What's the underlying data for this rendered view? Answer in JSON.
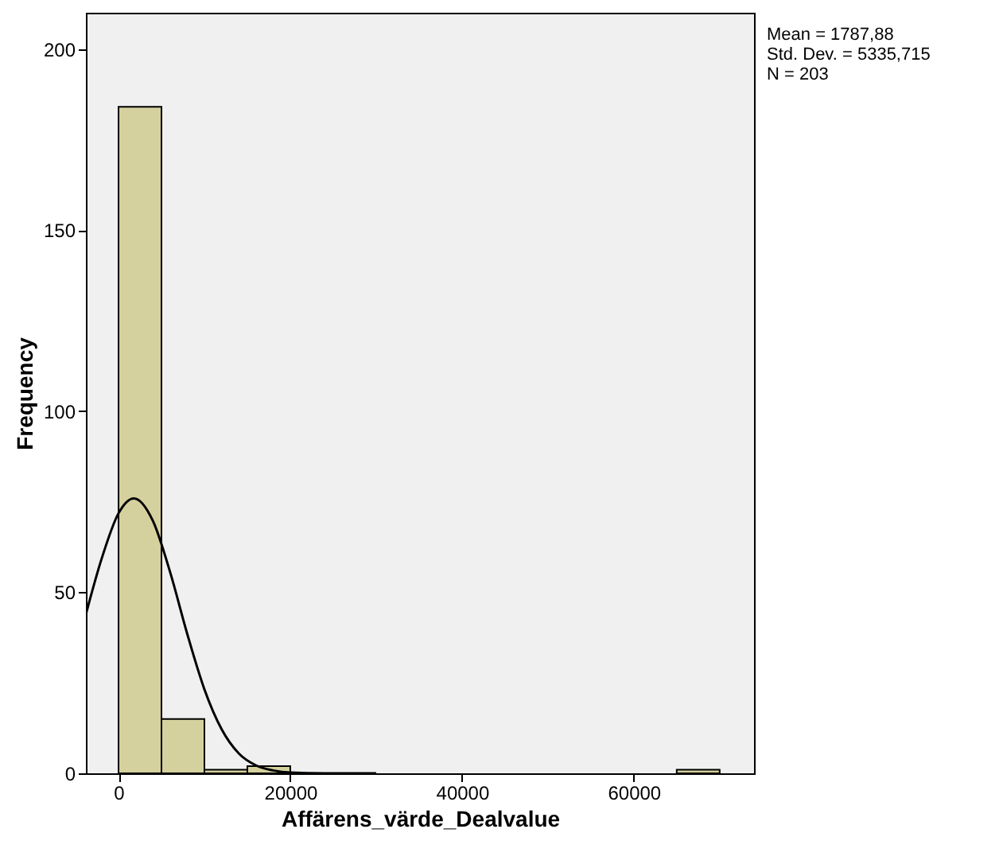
{
  "chart_data": {
    "type": "histogram",
    "xlabel": "Affärens_värde_Dealvalue",
    "ylabel": "Frequency",
    "xlim": [
      -3800,
      74000
    ],
    "xticks": [
      0,
      20000,
      40000,
      60000
    ],
    "ylim": [
      0,
      210
    ],
    "yticks": [
      0,
      50,
      100,
      150,
      200
    ],
    "grid": false,
    "annotations": [
      "Mean = 1787,88",
      "Std. Dev. = 5335,715",
      "N = 203"
    ],
    "series": [
      {
        "color": "#d5d19e",
        "bins": [
          0,
          5000,
          10000,
          15000,
          20000,
          25000,
          30000,
          35000,
          40000,
          45000,
          50000,
          55000,
          60000,
          65000,
          70000
        ],
        "values": [
          184,
          15,
          1,
          2,
          0,
          0,
          0,
          0,
          0,
          0,
          0,
          0,
          0,
          1
        ]
      },
      {
        "type": "line",
        "color": "#000000",
        "x": [
          -3800,
          -2000,
          0,
          1788,
          4000,
          6000,
          8000,
          10000,
          12000,
          14000,
          16000,
          18000,
          20000,
          24000,
          30000
        ],
        "values": [
          43.9,
          59.0,
          71.8,
          75.9,
          69.7,
          55.6,
          38.5,
          23.2,
          12.2,
          5.5,
          2.2,
          0.8,
          0.2,
          0,
          0
        ]
      }
    ]
  }
}
